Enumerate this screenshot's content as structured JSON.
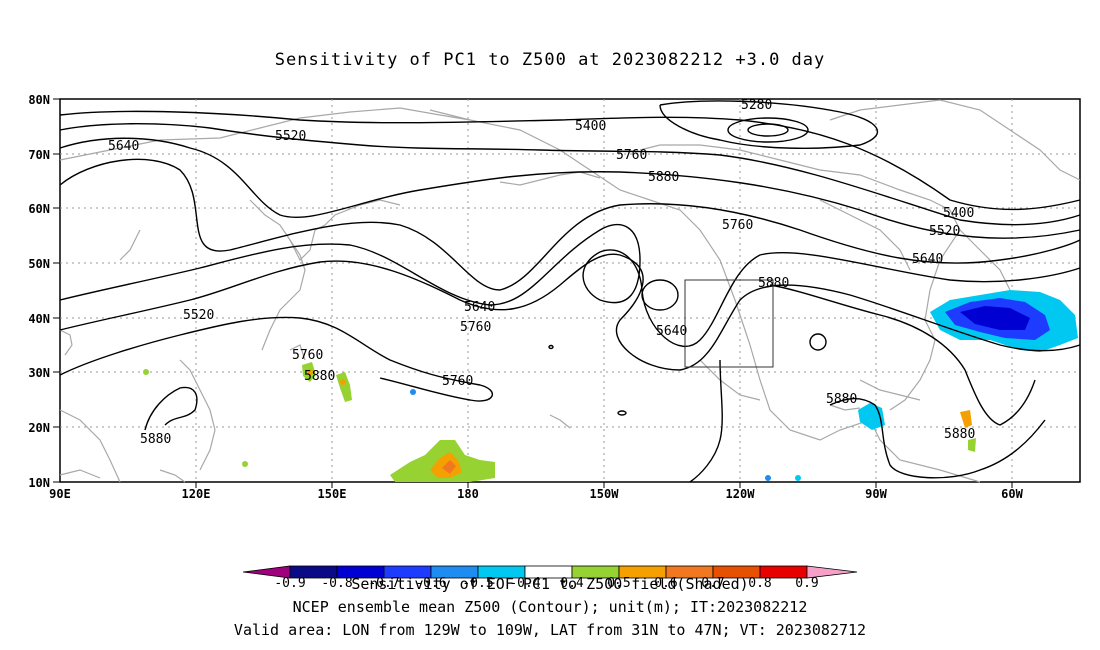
{
  "title": "Sensitivity of PC1 to Z500 at 2023082212 +3.0 day",
  "axes": {
    "lat_labels": [
      "80N",
      "70N",
      "60N",
      "50N",
      "40N",
      "30N",
      "20N",
      "10N"
    ],
    "lon_labels": [
      "90E",
      "120E",
      "150E",
      "180",
      "150W",
      "120W",
      "90W",
      "60W"
    ]
  },
  "contour_labels": [
    "5280",
    "5400",
    "5520",
    "5640",
    "5760",
    "5880",
    "5400",
    "5520",
    "5640",
    "5640",
    "5520",
    "5760",
    "5760",
    "5640",
    "5760",
    "5880",
    "5760",
    "5880",
    "5880",
    "5880",
    "5880"
  ],
  "colorbar": {
    "tick_labels": [
      "-0.9",
      "-0.8",
      "-0.7",
      "-0.6",
      "-0.5",
      "-0.4",
      "0.4",
      "0.5",
      "0.6",
      "0.7",
      "0.8",
      "0.9"
    ],
    "colors": [
      "#a0007e",
      "#0a0a87",
      "#0000d2",
      "#1e3cff",
      "#1e8cf0",
      "#00c8f0",
      "#ffffff",
      "#96d232",
      "#f5a000",
      "#f07820",
      "#e65000",
      "#e60000",
      "#f5a0c8"
    ]
  },
  "footer": {
    "line1": "Sensitivity of EOF PC1 to Z500 field(Shaded)",
    "line2": "NCEP ensemble mean Z500 (Contour); unit(m); IT:2023082212",
    "line3": "Valid area: LON from 129W to 109W, LAT from 31N to 47N; VT: 2023082712"
  }
}
